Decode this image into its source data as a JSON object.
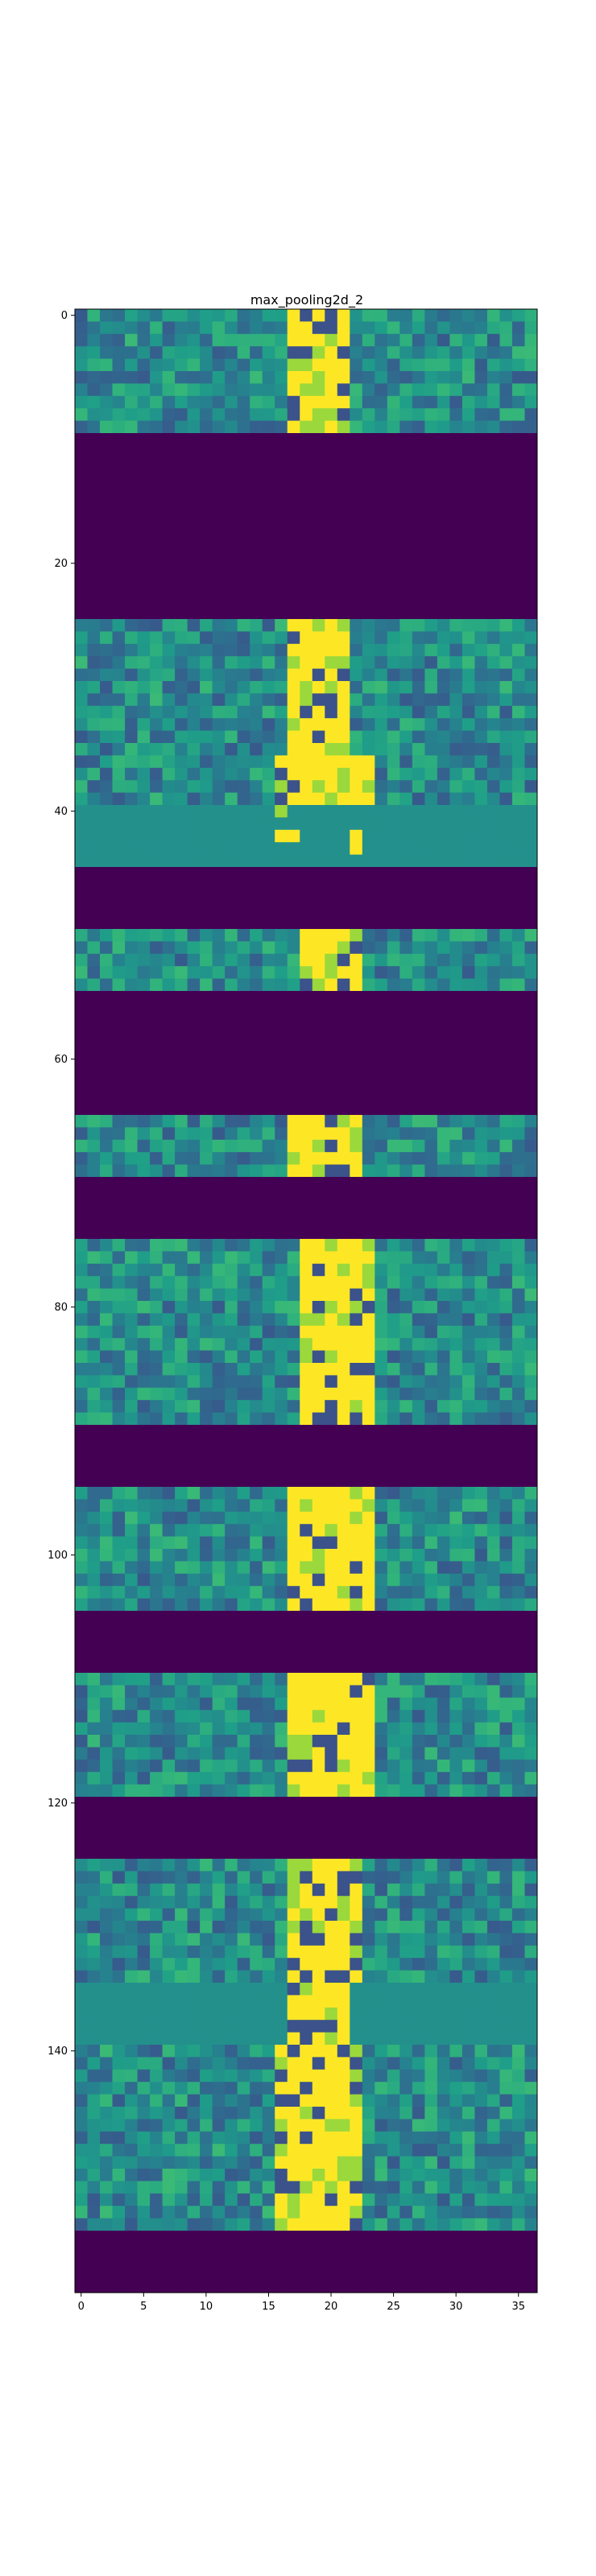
{
  "chart_data": {
    "type": "heatmap",
    "title": "max_pooling2d_2",
    "colormap": "viridis",
    "grid": false,
    "colorbar": false,
    "n_cols": 37,
    "n_rows": 160,
    "xlim": [
      -0.5,
      36.5
    ],
    "ylim": [
      159.5,
      -0.5
    ],
    "xticks": [
      0,
      5,
      10,
      15,
      20,
      25,
      30,
      35
    ],
    "yticks": [
      0,
      20,
      40,
      60,
      80,
      100,
      120,
      140
    ],
    "xtick_labels": [
      "0",
      "5",
      "10",
      "15",
      "20",
      "25",
      "30",
      "35"
    ],
    "ytick_labels": [
      "0",
      "20",
      "40",
      "60",
      "80",
      "100",
      "120",
      "140"
    ],
    "row_bands": [
      {
        "rows": [
          0,
          9
        ],
        "kind": "textured",
        "bright_cols": [
          [
            17,
            21
          ]
        ]
      },
      {
        "rows": [
          10,
          24
        ],
        "kind": "zero"
      },
      {
        "rows": [
          25,
          35
        ],
        "kind": "textured",
        "bright_cols": [
          [
            17,
            21
          ]
        ]
      },
      {
        "rows": [
          36,
          39
        ],
        "kind": "textured",
        "bright_cols": [
          [
            16,
            23
          ]
        ]
      },
      {
        "rows": [
          40,
          44
        ],
        "kind": "flat",
        "level": 0.5,
        "bright_cells": [
          [
            40,
            16
          ],
          [
            42,
            16
          ],
          [
            42,
            17
          ],
          [
            42,
            22
          ],
          [
            43,
            22
          ]
        ]
      },
      {
        "rows": [
          45,
          49
        ],
        "kind": "zero"
      },
      {
        "rows": [
          50,
          54
        ],
        "kind": "textured",
        "bright_cols": [
          [
            18,
            22
          ]
        ]
      },
      {
        "rows": [
          55,
          64
        ],
        "kind": "zero"
      },
      {
        "rows": [
          65,
          69
        ],
        "kind": "textured",
        "bright_cols": [
          [
            17,
            22
          ]
        ]
      },
      {
        "rows": [
          70,
          74
        ],
        "kind": "zero"
      },
      {
        "rows": [
          75,
          89
        ],
        "kind": "textured",
        "bright_cols": [
          [
            18,
            23
          ]
        ]
      },
      {
        "rows": [
          90,
          94
        ],
        "kind": "zero"
      },
      {
        "rows": [
          95,
          104
        ],
        "kind": "textured",
        "bright_cols": [
          [
            17,
            23
          ]
        ]
      },
      {
        "rows": [
          105,
          109
        ],
        "kind": "zero"
      },
      {
        "rows": [
          110,
          119
        ],
        "kind": "textured",
        "bright_cols": [
          [
            17,
            23
          ]
        ]
      },
      {
        "rows": [
          120,
          124
        ],
        "kind": "zero"
      },
      {
        "rows": [
          125,
          134
        ],
        "kind": "textured",
        "bright_cols": [
          [
            17,
            22
          ]
        ]
      },
      {
        "rows": [
          135,
          139
        ],
        "kind": "flat",
        "level": 0.5,
        "bright_cols": [
          [
            17,
            21
          ]
        ]
      },
      {
        "rows": [
          140,
          154
        ],
        "kind": "textured",
        "bright_cols": [
          [
            16,
            22
          ]
        ]
      },
      {
        "rows": [
          155,
          159
        ],
        "kind": "zero"
      }
    ]
  }
}
